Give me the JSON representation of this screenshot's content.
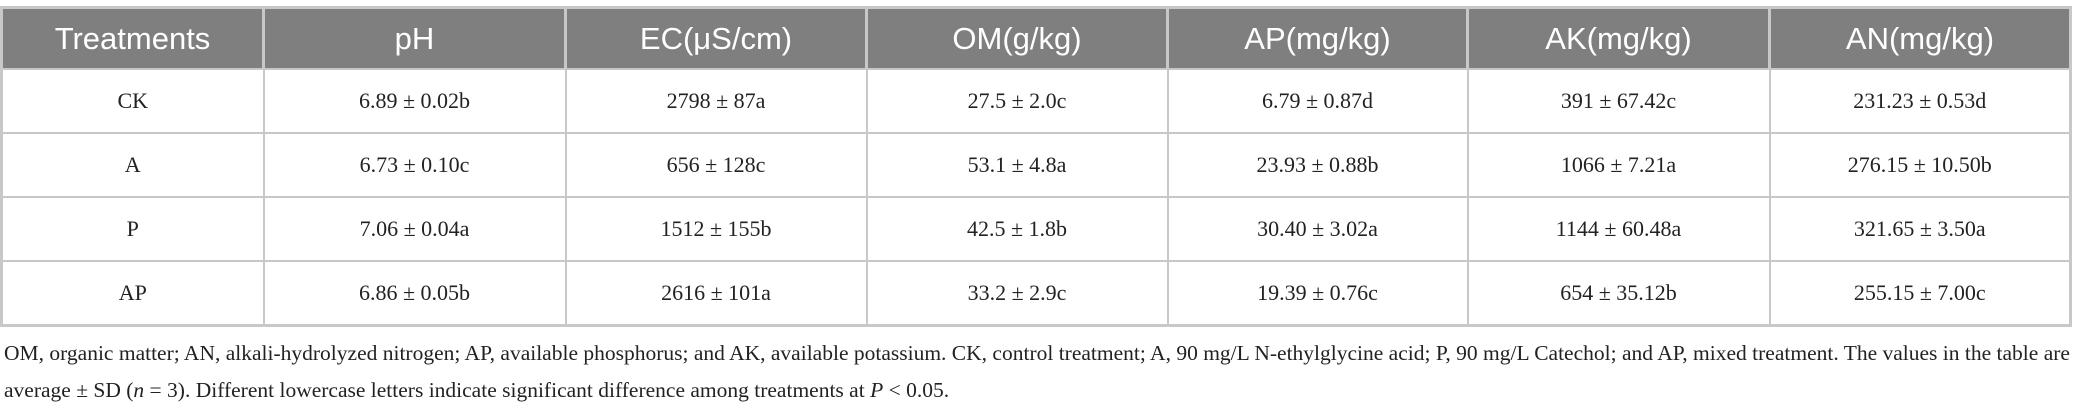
{
  "table": {
    "header": [
      "Treatments",
      "pH",
      "EC(μS/cm)",
      "OM(g/kg)",
      "AP(mg/kg)",
      "AK(mg/kg)",
      "AN(mg/kg)"
    ],
    "rows": [
      [
        "CK",
        "6.89 ± 0.02b",
        "2798 ± 87a",
        "27.5 ± 2.0c",
        "6.79 ± 0.87d",
        "391 ± 67.42c",
        "231.23 ± 0.53d"
      ],
      [
        "A",
        "6.73 ± 0.10c",
        "656 ± 128c",
        "53.1 ± 4.8a",
        "23.93 ± 0.88b",
        "1066 ± 7.21a",
        "276.15 ± 10.50b"
      ],
      [
        "P",
        "7.06 ± 0.04a",
        "1512 ± 155b",
        "42.5 ± 1.8b",
        "30.40 ± 3.02a",
        "1144 ± 60.48a",
        "321.65 ± 3.50a"
      ],
      [
        "AP",
        "6.86 ± 0.05b",
        "2616 ± 101a",
        "33.2 ± 2.9c",
        "19.39 ± 0.76c",
        "654 ± 35.12b",
        "255.15 ± 7.00c"
      ]
    ]
  },
  "footnote": [
    "OM, organic matter; AN, alkali-hydrolyzed nitrogen; AP, available phosphorus; and AK, available potassium. CK, control treatment; A, 90 mg/L N-ethylglycine acid; P, 90 mg/L Catechol; and AP, mixed treatment. The values in the table are average ± SD (",
    "n",
    " = 3). Different lowercase letters indicate significant difference among treatments at ",
    "P",
    " < 0.05."
  ]
}
